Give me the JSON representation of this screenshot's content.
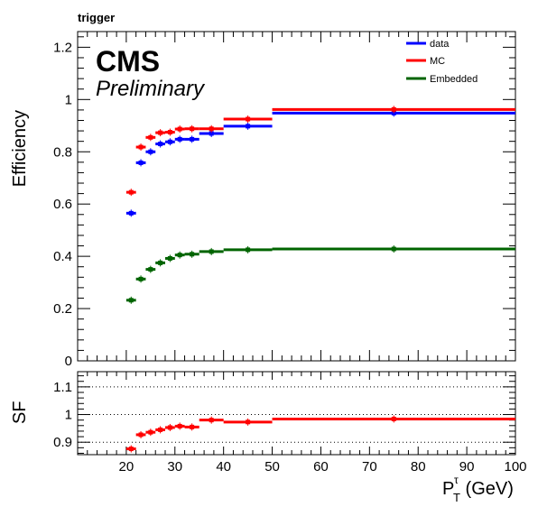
{
  "corner_label": "trigger",
  "experiment": "CMS",
  "status": "Preliminary",
  "colors": {
    "data": "#0000ff",
    "MC": "#ff0000",
    "Embedded": "#006400"
  },
  "chart_data": [
    {
      "type": "line",
      "panel": "upper",
      "ylabel": "Efficiency",
      "xlim": [
        10,
        100
      ],
      "ylim": [
        0,
        1.26
      ],
      "yticks": [
        0,
        0.2,
        0.4,
        0.6,
        0.8,
        1,
        1.2
      ],
      "ytick_labels": [
        "0",
        "0.2",
        "0.4",
        "0.6",
        "0.8",
        "1",
        "1.2"
      ],
      "legend": {
        "placement": "top-right",
        "entries": [
          "data",
          "MC",
          "Embedded"
        ]
      },
      "bin_edges": [
        20,
        22,
        24,
        26,
        28,
        30,
        32,
        35,
        40,
        50,
        100
      ],
      "series": [
        {
          "name": "data",
          "color": "#0000ff",
          "values": [
            0.565,
            0.758,
            0.8,
            0.83,
            0.838,
            0.848,
            0.848,
            0.87,
            0.898,
            0.948
          ]
        },
        {
          "name": "MC",
          "color": "#ff0000",
          "values": [
            0.645,
            0.818,
            0.855,
            0.873,
            0.875,
            0.887,
            0.888,
            0.888,
            0.925,
            0.962
          ]
        },
        {
          "name": "Embedded",
          "color": "#006400",
          "values": [
            0.232,
            0.313,
            0.35,
            0.375,
            0.392,
            0.405,
            0.408,
            0.418,
            0.425,
            0.428
          ]
        }
      ]
    },
    {
      "type": "line",
      "panel": "lower",
      "ylabel": "SF",
      "xlabel": "P_T^τ (GeV)",
      "xlabel_main": "P",
      "xlabel_sub": "T",
      "xlabel_sup": "τ",
      "xlabel_unit": " (GeV)",
      "xlim": [
        10,
        100
      ],
      "ylim": [
        0.855,
        1.155
      ],
      "yticks": [
        0.9,
        1,
        1.1
      ],
      "ytick_labels": [
        "0.9",
        "1",
        "1.1"
      ],
      "xticks": [
        20,
        30,
        40,
        50,
        60,
        70,
        80,
        90,
        100
      ],
      "xtick_labels": [
        "20",
        "30",
        "40",
        "50",
        "60",
        "70",
        "80",
        "90",
        "100"
      ],
      "grid": "horizontal dotted at 0.9, 1, 1.1",
      "bin_edges": [
        20,
        22,
        24,
        26,
        28,
        30,
        32,
        35,
        40,
        50,
        100
      ],
      "series": [
        {
          "name": "SF",
          "color": "#ff0000",
          "values": [
            0.876,
            0.927,
            0.936,
            0.945,
            0.953,
            0.958,
            0.955,
            0.98,
            0.973,
            0.984
          ]
        }
      ]
    }
  ]
}
